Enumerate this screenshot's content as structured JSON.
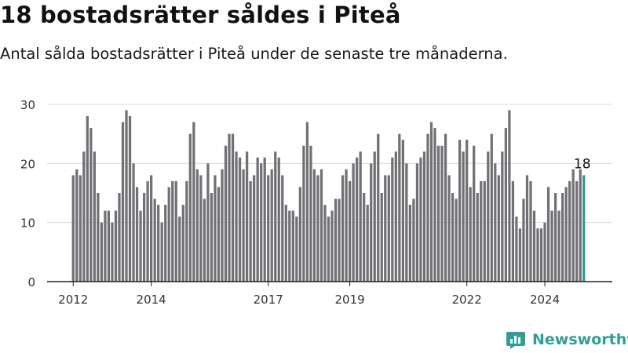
{
  "header": {
    "title": "18 bostadsrätter såldes i Piteå",
    "subtitle": "Antal sålda bostadsrätter i Piteå under de senaste tre månaderna."
  },
  "brand": {
    "name": "Newsworthy"
  },
  "chart_data": {
    "type": "bar",
    "title": "18 bostadsrätter såldes i Piteå",
    "subtitle": "Antal sålda bostadsrätter i Piteå under de senaste tre månaderna.",
    "xlabel": "",
    "ylabel": "",
    "ylim": [
      0,
      30
    ],
    "yticks": [
      0,
      10,
      20,
      30
    ],
    "grid": true,
    "x_tick_labels": [
      {
        "label": "2012",
        "index": 0
      },
      {
        "label": "2014",
        "index": 22
      },
      {
        "label": "2017",
        "index": 55
      },
      {
        "label": "2019",
        "index": 78
      },
      {
        "label": "2022",
        "index": 111
      },
      {
        "label": "2024",
        "index": 133
      }
    ],
    "series": [
      {
        "name": "Sålda bostadsrätter",
        "values": [
          18,
          19,
          18,
          22,
          28,
          26,
          22,
          15,
          10,
          12,
          12,
          10,
          12,
          15,
          27,
          29,
          28,
          20,
          16,
          12,
          15,
          17,
          18,
          14,
          13,
          10,
          13,
          16,
          17,
          17,
          11,
          13,
          17,
          25,
          27,
          19,
          18,
          14,
          20,
          15,
          18,
          16,
          19,
          23,
          25,
          25,
          22,
          21,
          19,
          22,
          17,
          18,
          21,
          20,
          21,
          18,
          19,
          22,
          21,
          18,
          13,
          12,
          12,
          11,
          16,
          23,
          27,
          23,
          19,
          18,
          19,
          13,
          11,
          12,
          14,
          14,
          18,
          19,
          17,
          20,
          21,
          22,
          15,
          13,
          20,
          22,
          25,
          15,
          18,
          18,
          21,
          22,
          25,
          24,
          20,
          13,
          14,
          20,
          21,
          22,
          25,
          27,
          26,
          23,
          23,
          25,
          18,
          15,
          14,
          24,
          22,
          24,
          16,
          23,
          15,
          17,
          17,
          22,
          25,
          20,
          18,
          22,
          26,
          29,
          17,
          11,
          9,
          14,
          18,
          17,
          12,
          9,
          9,
          10,
          16,
          12,
          15,
          12,
          15,
          16,
          17,
          19,
          17,
          19,
          18
        ]
      }
    ],
    "highlight": {
      "index": 144,
      "label": "18",
      "color": "#2a9d95"
    },
    "bar_color": "#717075"
  }
}
